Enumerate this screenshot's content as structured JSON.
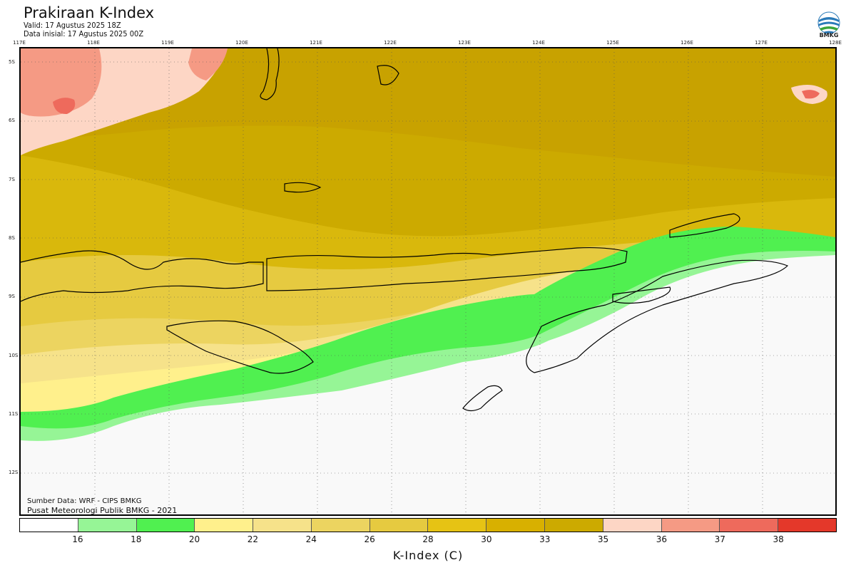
{
  "header": {
    "title": "Prakiraan K-Index",
    "valid": "Valid: 17 Agustus 2025 18Z",
    "init": "Data inisial: 17 Agustus 2025 00Z"
  },
  "logo": {
    "text": "BMKG",
    "icon": "bmkg-logo"
  },
  "axes": {
    "lon_labels": [
      "117E",
      "118E",
      "119E",
      "120E",
      "121E",
      "122E",
      "123E",
      "124E",
      "125E",
      "126E",
      "127E",
      "128E"
    ],
    "lat_labels": [
      "5S",
      "6S",
      "7S",
      "8S",
      "9S",
      "10S",
      "11S",
      "12S"
    ]
  },
  "footer": {
    "source": "Sumber Data: WRF - CIPS BMKG",
    "center": "Pusat Meteorologi Publik BMKG - 2021"
  },
  "colorbar": {
    "title": "K-Index (C)",
    "ticks": [
      "16",
      "18",
      "20",
      "22",
      "24",
      "26",
      "28",
      "30",
      "33",
      "35",
      "36",
      "37",
      "38"
    ],
    "colors": [
      "#ffffff",
      "#96f596",
      "#50f050",
      "#fff08c",
      "#f6e28a",
      "#ecd460",
      "#e6ca40",
      "#e6c314",
      "#d8b000",
      "#ccaa00",
      "#fdd6c5",
      "#f59a84",
      "#ee6a5c",
      "#e4382a"
    ]
  },
  "colors": {
    "land_outline": "#000000",
    "ocean_low": "#f9f9f9",
    "grid": "#555555"
  }
}
